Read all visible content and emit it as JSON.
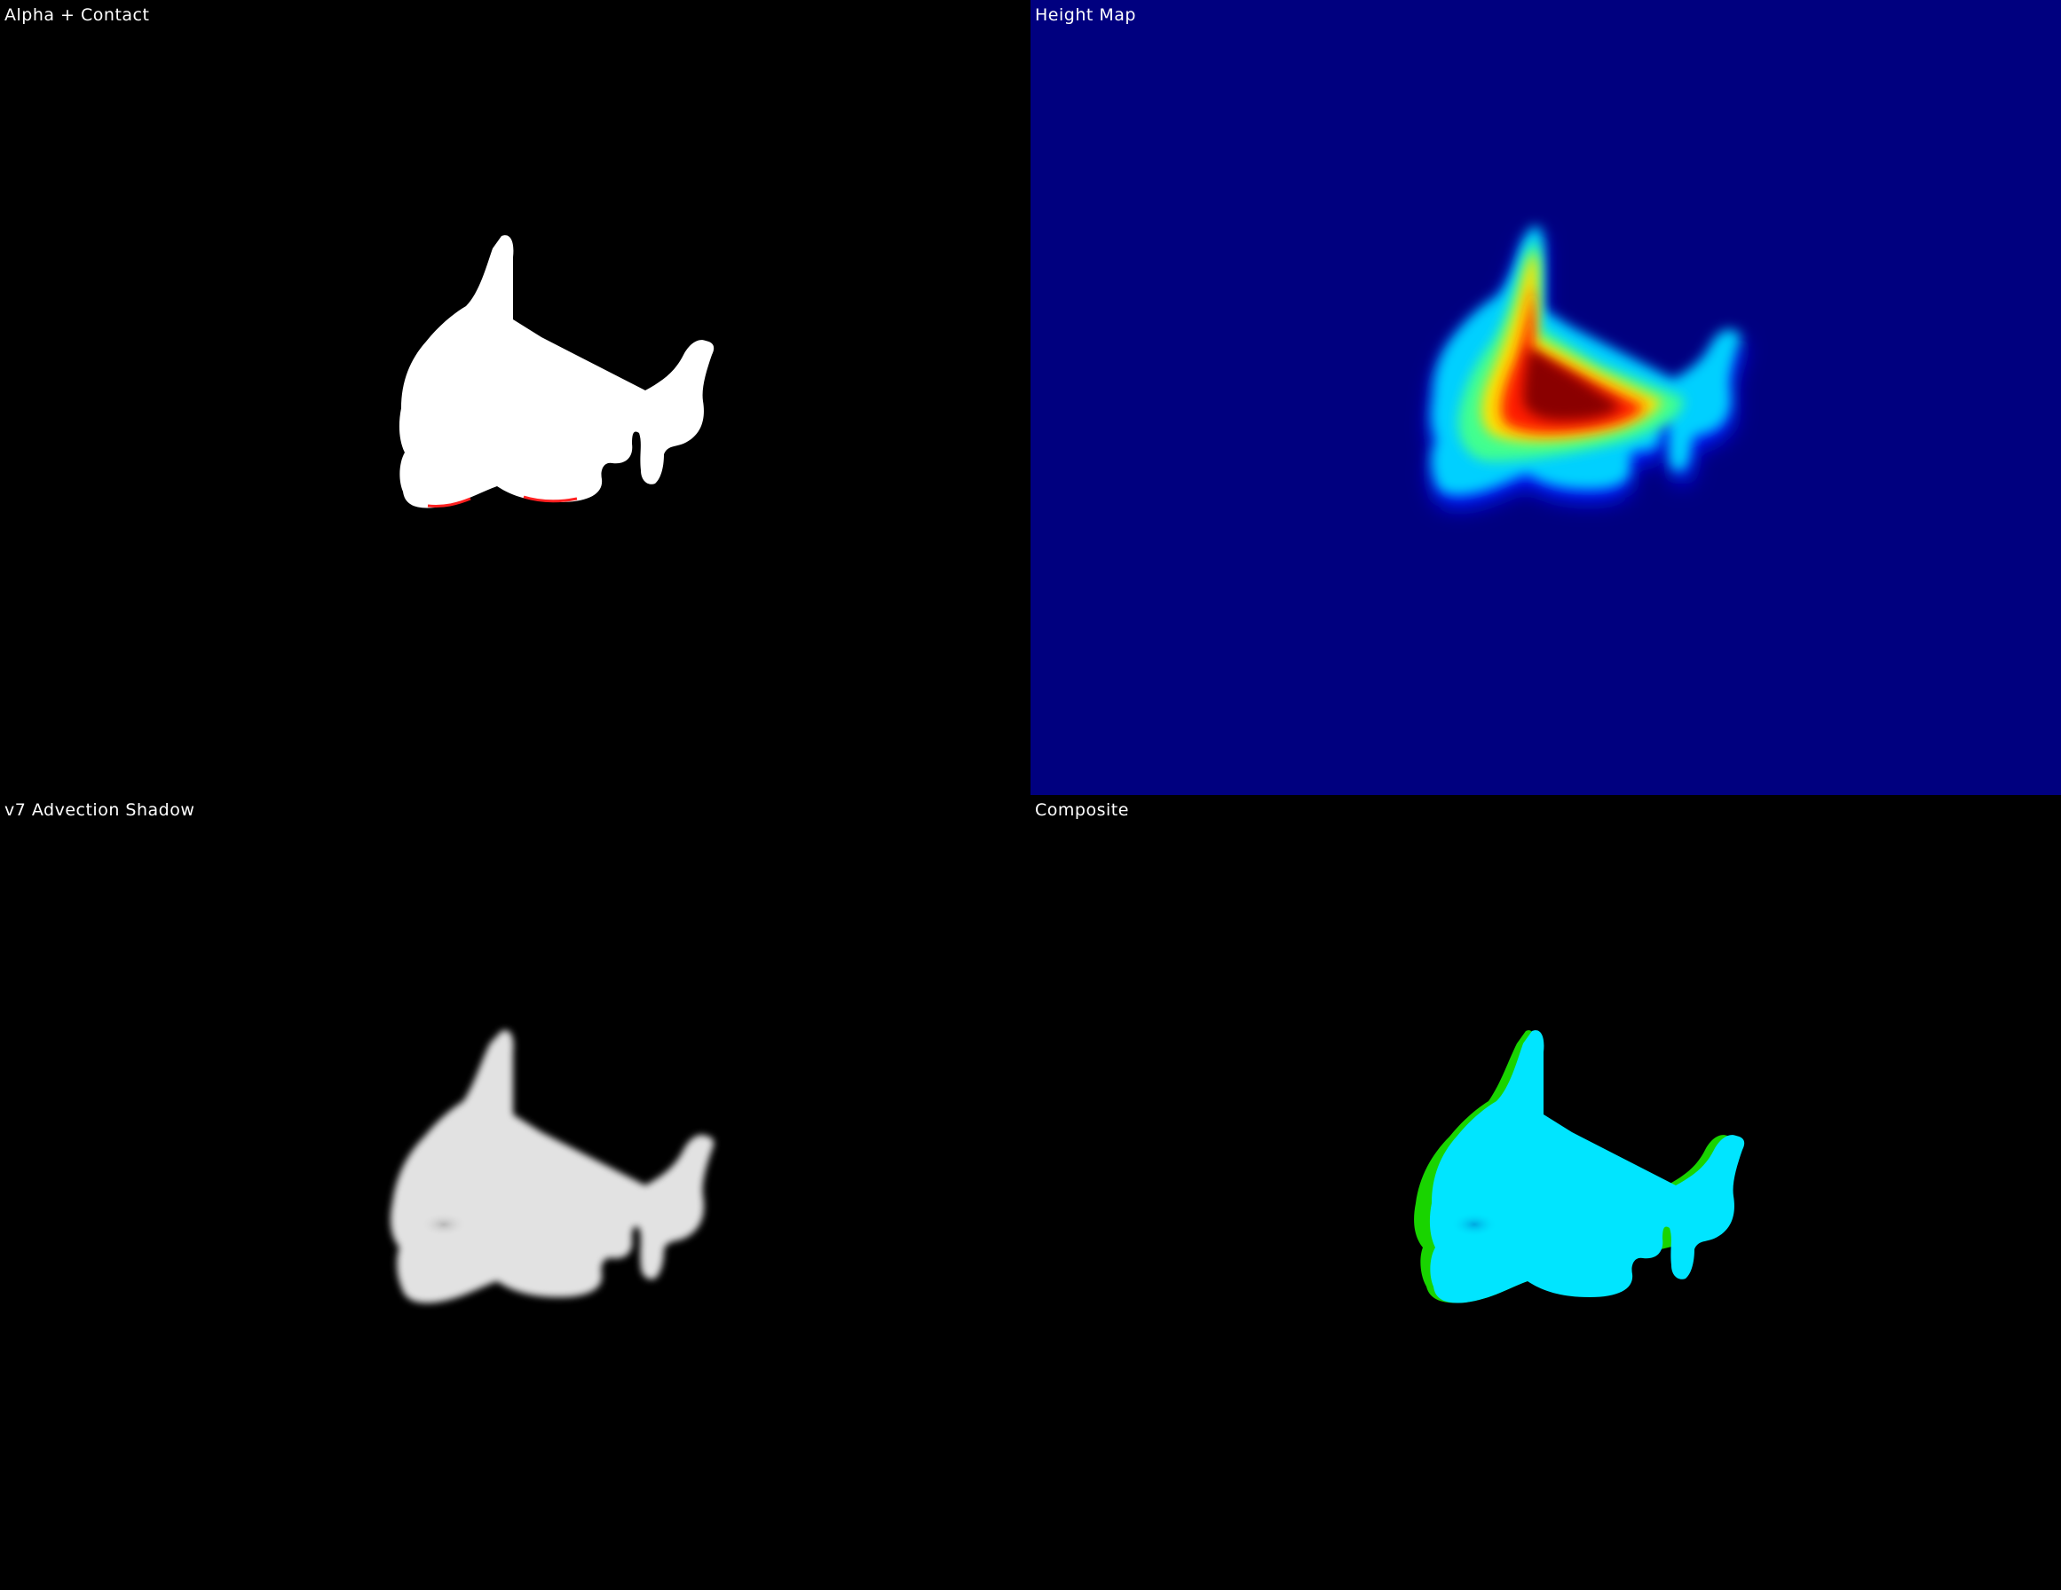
{
  "panels": {
    "alpha": {
      "title": "Alpha + Contact"
    },
    "height": {
      "title": "Height Map"
    },
    "shadow": {
      "title": "v7 Advection Shadow"
    },
    "composite": {
      "title": "Composite"
    }
  },
  "colors": {
    "background": "#000000",
    "heightmap_background": "#00007f",
    "alpha_fill": "#ffffff",
    "contact_edge": "#ff0000",
    "shadow_fill": "#e2e2e2",
    "composite_fill": "#00e5ff",
    "composite_shadow": "#19d400",
    "label_text": "#ffffff"
  }
}
